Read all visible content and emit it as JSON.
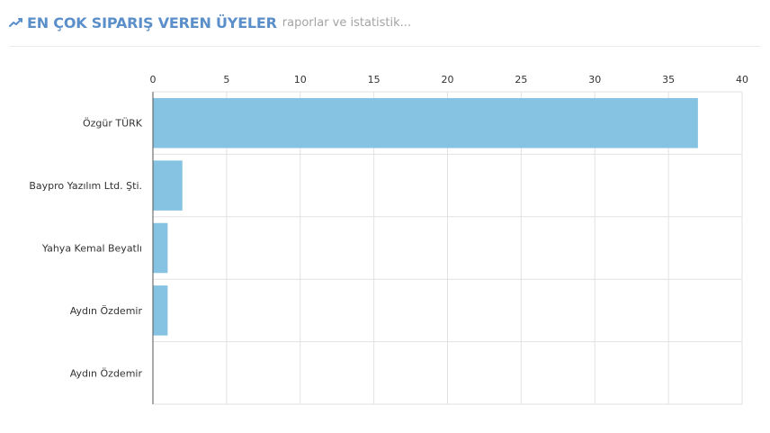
{
  "header": {
    "title": "EN ÇOK SIPARIŞ VEREN ÜYELER",
    "subtitle": "raporlar ve istatistik...",
    "icon": "line-chart-icon"
  },
  "colors": {
    "accent": "#5b8fc9",
    "bar": "#86c3e3",
    "grid": "#e2e2e2",
    "axis": "#555555"
  },
  "chart_data": {
    "type": "bar",
    "orientation": "horizontal",
    "categories": [
      "Özgür TÜRK",
      "Baypro Yazılım Ltd. Şti.",
      "Yahya Kemal Beyatlı",
      "Aydın Özdemir",
      "Aydın Özdemir"
    ],
    "values": [
      37,
      2,
      1,
      1,
      0
    ],
    "xlim": [
      0,
      40
    ],
    "xticks": [
      0,
      5,
      10,
      15,
      20,
      25,
      30,
      35,
      40
    ],
    "x_axis_position": "top",
    "grid": true,
    "legend": "none"
  }
}
